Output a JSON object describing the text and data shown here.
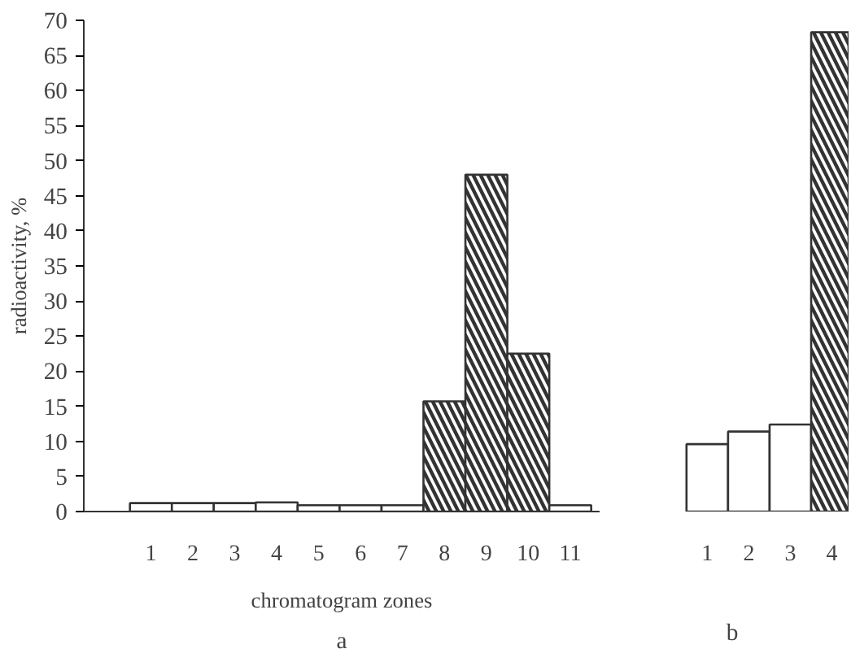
{
  "chart_data": [
    {
      "type": "bar",
      "categories": [
        "1",
        "2",
        "3",
        "4",
        "5",
        "6",
        "7",
        "8",
        "9",
        "10",
        "11"
      ],
      "values": [
        1.2,
        1.2,
        1.2,
        1.3,
        0.9,
        0.9,
        0.9,
        15.7,
        48,
        22.5,
        0.9
      ],
      "colors": [
        "#ffffff",
        "#ffffff",
        "#ffffff",
        "#ffffff",
        "#ffffff",
        "#ffffff",
        "#ffffff",
        "#333333",
        "#333333",
        "#333333",
        "#ffffff"
      ],
      "ylim": [
        0,
        70
      ],
      "yticks": [
        0,
        5,
        10,
        15,
        20,
        25,
        30,
        35,
        40,
        45,
        50,
        55,
        60,
        65,
        70
      ],
      "ylabel": "radioactivity, %",
      "xlabel": "chromatogram zones",
      "annotations": [
        "a"
      ]
    },
    {
      "type": "bar",
      "categories": [
        "1",
        "2",
        "3",
        "4"
      ],
      "values": [
        9.6,
        11.4,
        12.4,
        68.3
      ],
      "colors": [
        "#ffffff",
        "#ffffff",
        "#ffffff",
        "#333333"
      ],
      "ylim": [
        0,
        70
      ],
      "yticks": [
        0,
        5,
        10,
        15,
        20,
        25,
        30,
        35,
        40,
        45,
        50,
        55,
        60,
        65,
        70
      ],
      "tick_labels": "x",
      "annotations": [
        "b"
      ]
    }
  ]
}
